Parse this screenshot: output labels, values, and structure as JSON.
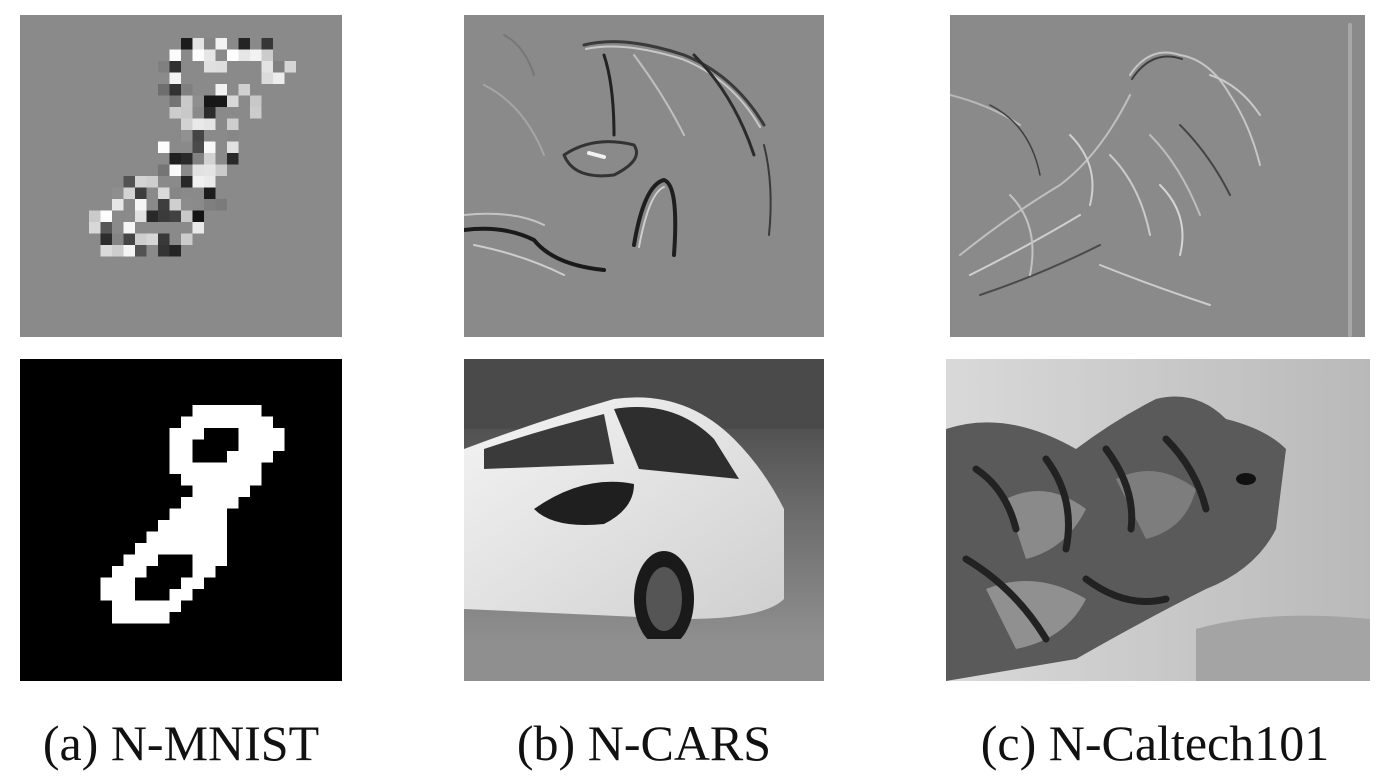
{
  "captions": [
    {
      "id": "a",
      "text": "(a) N-MNIST"
    },
    {
      "id": "b",
      "text": "(b) N-CARS"
    },
    {
      "id": "c",
      "text": "(c) N-Caltech101"
    }
  ],
  "colors": {
    "event_background": "#8a8a8a",
    "mnist_digit_background": "#000000",
    "mnist_digit_fill": "#ffffff"
  }
}
